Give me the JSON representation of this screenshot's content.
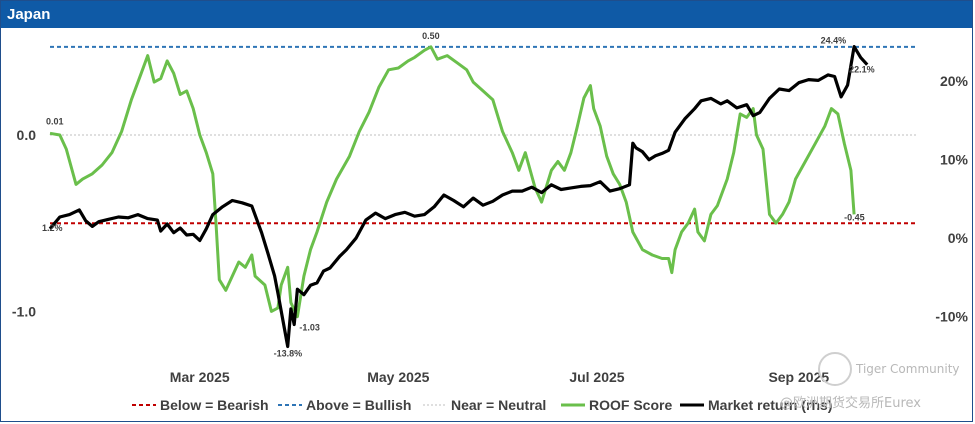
{
  "header": {
    "title": "Japan"
  },
  "watermark": {
    "line1": "Tiger Community",
    "line2": "@欧洲期货交易所Eurex"
  },
  "chart_data": {
    "type": "line",
    "title": "Japan",
    "left_axis": {
      "ticks": [
        {
          "v": 0.0,
          "label": "0.0"
        },
        {
          "v": -1.0,
          "label": "-1.0"
        }
      ],
      "range": [
        -1.23,
        0.55
      ]
    },
    "right_axis": {
      "ticks": [
        {
          "v": 20,
          "label": "20%"
        },
        {
          "v": 10,
          "label": "10%"
        },
        {
          "v": 0,
          "label": "0%"
        },
        {
          "v": -10,
          "label": "-10%"
        }
      ],
      "range": [
        -14.5,
        25.5
      ]
    },
    "x_axis": {
      "ticks": [
        {
          "label": "Mar 2025",
          "day": 46
        },
        {
          "label": "May 2025",
          "day": 107
        },
        {
          "label": "Jul 2025",
          "day": 168
        },
        {
          "label": "Sep 2025",
          "day": 230
        }
      ],
      "range": [
        0,
        266
      ]
    },
    "reference_lines": [
      {
        "name": "Below = Bearish",
        "value": -0.5,
        "color": "#c00000",
        "style": "dashed"
      },
      {
        "name": "Above = Bullish",
        "value": 0.5,
        "color": "#2e75b6",
        "style": "dashed"
      },
      {
        "name": "Near = Neutral",
        "value": 0.0,
        "color": "#bfbfbf",
        "style": "dotted"
      }
    ],
    "series": [
      {
        "name": "ROOF Score",
        "color": "#6abf4b",
        "axis": "left",
        "points": [
          [
            0,
            0.01
          ],
          [
            3,
            0.0
          ],
          [
            5,
            -0.08
          ],
          [
            8,
            -0.28
          ],
          [
            10,
            -0.25
          ],
          [
            13,
            -0.22
          ],
          [
            16,
            -0.17
          ],
          [
            19,
            -0.1
          ],
          [
            22,
            0.02
          ],
          [
            25,
            0.2
          ],
          [
            28,
            0.35
          ],
          [
            30,
            0.45
          ],
          [
            32,
            0.3
          ],
          [
            34,
            0.32
          ],
          [
            36,
            0.42
          ],
          [
            38,
            0.35
          ],
          [
            40,
            0.23
          ],
          [
            42,
            0.25
          ],
          [
            44,
            0.15
          ],
          [
            46,
            0.0
          ],
          [
            48,
            -0.1
          ],
          [
            50,
            -0.22
          ],
          [
            51,
            -0.5
          ],
          [
            52,
            -0.82
          ],
          [
            54,
            -0.88
          ],
          [
            56,
            -0.8
          ],
          [
            58,
            -0.72
          ],
          [
            60,
            -0.75
          ],
          [
            62,
            -0.68
          ],
          [
            63,
            -0.8
          ],
          [
            66,
            -0.85
          ],
          [
            68,
            -1.0
          ],
          [
            70,
            -0.98
          ],
          [
            71,
            -0.85
          ],
          [
            73,
            -0.75
          ],
          [
            74,
            -0.95
          ],
          [
            76,
            -1.03
          ],
          [
            78,
            -0.8
          ],
          [
            80,
            -0.65
          ],
          [
            82,
            -0.55
          ],
          [
            85,
            -0.38
          ],
          [
            88,
            -0.25
          ],
          [
            92,
            -0.12
          ],
          [
            95,
            0.02
          ],
          [
            98,
            0.13
          ],
          [
            101,
            0.27
          ],
          [
            104,
            0.37
          ],
          [
            107,
            0.38
          ],
          [
            110,
            0.42
          ],
          [
            112,
            0.44
          ],
          [
            115,
            0.48
          ],
          [
            117,
            0.5
          ],
          [
            119,
            0.43
          ],
          [
            122,
            0.45
          ],
          [
            125,
            0.41
          ],
          [
            128,
            0.37
          ],
          [
            130,
            0.3
          ],
          [
            133,
            0.25
          ],
          [
            136,
            0.2
          ],
          [
            139,
            0.02
          ],
          [
            142,
            -0.1
          ],
          [
            144,
            -0.2
          ],
          [
            146,
            -0.1
          ],
          [
            149,
            -0.3
          ],
          [
            151,
            -0.38
          ],
          [
            154,
            -0.2
          ],
          [
            156,
            -0.15
          ],
          [
            158,
            -0.2
          ],
          [
            160,
            -0.1
          ],
          [
            162,
            0.05
          ],
          [
            164,
            0.21
          ],
          [
            166,
            0.28
          ],
          [
            167,
            0.15
          ],
          [
            169,
            0.05
          ],
          [
            171,
            -0.12
          ],
          [
            173,
            -0.22
          ],
          [
            175,
            -0.28
          ],
          [
            177,
            -0.38
          ],
          [
            179,
            -0.55
          ],
          [
            182,
            -0.65
          ],
          [
            185,
            -0.68
          ],
          [
            188,
            -0.7
          ],
          [
            190,
            -0.7
          ],
          [
            191,
            -0.78
          ],
          [
            192,
            -0.65
          ],
          [
            194,
            -0.55
          ],
          [
            196,
            -0.5
          ],
          [
            198,
            -0.42
          ],
          [
            199,
            -0.55
          ],
          [
            201,
            -0.6
          ],
          [
            203,
            -0.45
          ],
          [
            205,
            -0.4
          ],
          [
            208,
            -0.25
          ],
          [
            210,
            -0.1
          ],
          [
            212,
            0.12
          ],
          [
            214,
            0.1
          ],
          [
            216,
            0.15
          ],
          [
            217,
            0.0
          ],
          [
            219,
            -0.08
          ],
          [
            221,
            -0.45
          ],
          [
            223,
            -0.5
          ],
          [
            225,
            -0.45
          ],
          [
            227,
            -0.38
          ],
          [
            229,
            -0.25
          ],
          [
            232,
            -0.15
          ],
          [
            235,
            -0.05
          ],
          [
            238,
            0.05
          ],
          [
            240,
            0.15
          ],
          [
            242,
            0.12
          ],
          [
            244,
            -0.05
          ],
          [
            246,
            -0.2
          ],
          [
            247,
            -0.45
          ]
        ]
      },
      {
        "name": "Market return (rhs)",
        "color": "#000000",
        "axis": "right",
        "points": [
          [
            0,
            1.2
          ],
          [
            3,
            2.7
          ],
          [
            6,
            3.0
          ],
          [
            9,
            3.6
          ],
          [
            11,
            2.2
          ],
          [
            13,
            1.5
          ],
          [
            15,
            2.1
          ],
          [
            18,
            2.4
          ],
          [
            21,
            2.7
          ],
          [
            24,
            2.6
          ],
          [
            27,
            3.0
          ],
          [
            30,
            2.5
          ],
          [
            33,
            2.3
          ],
          [
            34,
            0.9
          ],
          [
            36,
            1.8
          ],
          [
            38,
            0.7
          ],
          [
            40,
            1.3
          ],
          [
            42,
            0.4
          ],
          [
            44,
            0.5
          ],
          [
            46,
            -0.3
          ],
          [
            48,
            1.2
          ],
          [
            50,
            3.0
          ],
          [
            53,
            4.0
          ],
          [
            56,
            4.8
          ],
          [
            59,
            4.5
          ],
          [
            62,
            4.1
          ],
          [
            65,
            0.7
          ],
          [
            67,
            -2.0
          ],
          [
            69,
            -4.8
          ],
          [
            70,
            -7.0
          ],
          [
            72,
            -11.5
          ],
          [
            73,
            -13.8
          ],
          [
            74,
            -9.0
          ],
          [
            75,
            -11.0
          ],
          [
            76,
            -6.5
          ],
          [
            78,
            -7.2
          ],
          [
            80,
            -6.0
          ],
          [
            82,
            -5.7
          ],
          [
            84,
            -4.2
          ],
          [
            86,
            -3.8
          ],
          [
            89,
            -2.3
          ],
          [
            91,
            -1.5
          ],
          [
            94,
            0.0
          ],
          [
            97,
            2.3
          ],
          [
            100,
            3.2
          ],
          [
            103,
            2.5
          ],
          [
            106,
            3.0
          ],
          [
            109,
            3.3
          ],
          [
            112,
            2.8
          ],
          [
            115,
            3.0
          ],
          [
            118,
            4.0
          ],
          [
            121,
            5.5
          ],
          [
            124,
            4.8
          ],
          [
            127,
            4.0
          ],
          [
            130,
            5.1
          ],
          [
            133,
            4.2
          ],
          [
            136,
            4.7
          ],
          [
            139,
            5.5
          ],
          [
            142,
            6.0
          ],
          [
            145,
            6.0
          ],
          [
            148,
            6.5
          ],
          [
            151,
            5.8
          ],
          [
            154,
            6.8
          ],
          [
            157,
            6.2
          ],
          [
            160,
            6.4
          ],
          [
            163,
            6.6
          ],
          [
            166,
            6.7
          ],
          [
            169,
            7.2
          ],
          [
            172,
            6.0
          ],
          [
            175,
            6.3
          ],
          [
            178,
            6.8
          ],
          [
            179,
            12.1
          ],
          [
            180,
            11.5
          ],
          [
            182,
            11.0
          ],
          [
            184,
            10.0
          ],
          [
            186,
            10.5
          ],
          [
            188,
            10.8
          ],
          [
            190,
            11.2
          ],
          [
            192,
            13.5
          ],
          [
            195,
            15.2
          ],
          [
            198,
            16.5
          ],
          [
            200,
            17.5
          ],
          [
            203,
            17.8
          ],
          [
            206,
            17.1
          ],
          [
            208,
            17.5
          ],
          [
            211,
            16.6
          ],
          [
            214,
            17.0
          ],
          [
            216,
            15.6
          ],
          [
            218,
            16.0
          ],
          [
            221,
            17.8
          ],
          [
            224,
            19.0
          ],
          [
            227,
            18.8
          ],
          [
            230,
            19.8
          ],
          [
            233,
            20.2
          ],
          [
            236,
            20.1
          ],
          [
            239,
            20.8
          ],
          [
            241,
            20.6
          ],
          [
            243,
            18.0
          ],
          [
            245,
            19.5
          ],
          [
            247,
            24.4
          ],
          [
            249,
            23.0
          ],
          [
            251,
            22.1
          ]
        ]
      }
    ],
    "annotations": [
      {
        "text": "0.01",
        "series": "ROOF Score",
        "day": 0,
        "value": 0.01
      },
      {
        "text": "-1.03",
        "series": "ROOF Score",
        "day": 76,
        "value": -1.03
      },
      {
        "text": "0.50",
        "series": "ROOF Score",
        "day": 117,
        "value": 0.5
      },
      {
        "text": "-0.45",
        "series": "ROOF Score",
        "day": 247,
        "value": -0.45
      },
      {
        "text": "1.2%",
        "series": "Market return (rhs)",
        "day": 0,
        "value": 1.2
      },
      {
        "text": "-13.8%",
        "series": "Market return (rhs)",
        "day": 73,
        "value": -13.8
      },
      {
        "text": "24.4%",
        "series": "Market return (rhs)",
        "day": 247,
        "value": 24.4
      },
      {
        "text": "22.1%",
        "series": "Market return (rhs)",
        "day": 251,
        "value": 22.1
      }
    ]
  }
}
